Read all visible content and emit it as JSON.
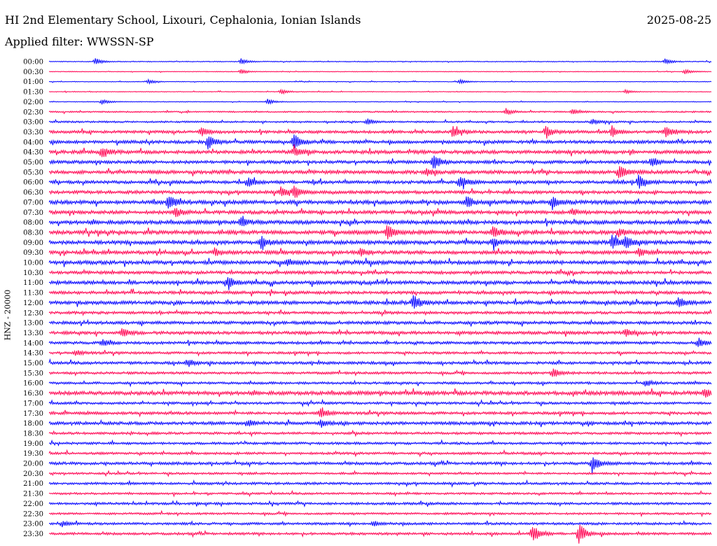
{
  "header": {
    "station": "HI 2nd Elementary School, Lixouri, Cephalonia, Ionian Islands",
    "date": "2025-08-25",
    "filter": "Applied filter: WWSSN-SP"
  },
  "chart_data": {
    "type": "line",
    "ylabel": "HNZ - 20000",
    "colors": [
      "#0000ff",
      "#ff0050"
    ],
    "rows": [
      {
        "label": "00:00",
        "noise": 0.5,
        "events": [
          {
            "x": 0.07,
            "amp": 5
          },
          {
            "x": 0.29,
            "amp": 4
          },
          {
            "x": 0.93,
            "amp": 4
          }
        ]
      },
      {
        "label": "00:30",
        "noise": 0.4,
        "events": [
          {
            "x": 0.29,
            "amp": 4
          },
          {
            "x": 0.96,
            "amp": 4
          }
        ]
      },
      {
        "label": "01:00",
        "noise": 0.4,
        "events": [
          {
            "x": 0.15,
            "amp": 3
          },
          {
            "x": 0.62,
            "amp": 3
          }
        ]
      },
      {
        "label": "01:30",
        "noise": 0.4,
        "events": [
          {
            "x": 0.35,
            "amp": 4
          },
          {
            "x": 0.87,
            "amp": 3
          }
        ]
      },
      {
        "label": "02:00",
        "noise": 0.4,
        "events": [
          {
            "x": 0.08,
            "amp": 4
          },
          {
            "x": 0.33,
            "amp": 4
          }
        ]
      },
      {
        "label": "02:30",
        "noise": 0.8,
        "events": [
          {
            "x": 0.69,
            "amp": 5
          },
          {
            "x": 0.79,
            "amp": 4
          }
        ]
      },
      {
        "label": "03:00",
        "noise": 1.0,
        "events": [
          {
            "x": 0.48,
            "amp": 5
          },
          {
            "x": 0.82,
            "amp": 4
          }
        ]
      },
      {
        "label": "03:30",
        "noise": 1.6,
        "events": [
          {
            "x": 0.23,
            "amp": 7
          },
          {
            "x": 0.61,
            "amp": 8
          },
          {
            "x": 0.75,
            "amp": 9
          },
          {
            "x": 0.85,
            "amp": 8
          },
          {
            "x": 0.93,
            "amp": 8
          }
        ]
      },
      {
        "label": "04:00",
        "noise": 1.8,
        "events": [
          {
            "x": 0.24,
            "amp": 10
          },
          {
            "x": 0.37,
            "amp": 12
          }
        ]
      },
      {
        "label": "04:30",
        "noise": 2.0,
        "events": [
          {
            "x": 0.08,
            "amp": 9
          },
          {
            "x": 0.37,
            "amp": 7
          }
        ]
      },
      {
        "label": "05:00",
        "noise": 1.8,
        "events": [
          {
            "x": 0.58,
            "amp": 12
          },
          {
            "x": 0.91,
            "amp": 7
          }
        ]
      },
      {
        "label": "05:30",
        "noise": 2.0,
        "events": [
          {
            "x": 0.57,
            "amp": 5
          },
          {
            "x": 0.86,
            "amp": 10
          }
        ]
      },
      {
        "label": "06:00",
        "noise": 1.8,
        "events": [
          {
            "x": 0.3,
            "amp": 7
          },
          {
            "x": 0.62,
            "amp": 10
          },
          {
            "x": 0.89,
            "amp": 10
          }
        ]
      },
      {
        "label": "06:30",
        "noise": 1.8,
        "events": [
          {
            "x": 0.35,
            "amp": 7
          },
          {
            "x": 0.37,
            "amp": 8
          }
        ]
      },
      {
        "label": "07:00",
        "noise": 2.2,
        "events": [
          {
            "x": 0.18,
            "amp": 11
          },
          {
            "x": 0.63,
            "amp": 9
          },
          {
            "x": 0.76,
            "amp": 9
          }
        ]
      },
      {
        "label": "07:30",
        "noise": 2.0,
        "events": [
          {
            "x": 0.19,
            "amp": 7
          },
          {
            "x": 0.79,
            "amp": 5
          }
        ]
      },
      {
        "label": "08:00",
        "noise": 2.2,
        "events": [
          {
            "x": 0.29,
            "amp": 7
          }
        ]
      },
      {
        "label": "08:30",
        "noise": 2.2,
        "events": [
          {
            "x": 0.51,
            "amp": 11
          },
          {
            "x": 0.67,
            "amp": 9
          },
          {
            "x": 0.86,
            "amp": 6
          }
        ]
      },
      {
        "label": "09:00",
        "noise": 2.2,
        "events": [
          {
            "x": 0.32,
            "amp": 8
          },
          {
            "x": 0.67,
            "amp": 6
          },
          {
            "x": 0.85,
            "amp": 11
          },
          {
            "x": 0.87,
            "amp": 8
          }
        ]
      },
      {
        "label": "09:30",
        "noise": 2.0,
        "events": [
          {
            "x": 0.25,
            "amp": 5
          },
          {
            "x": 0.47,
            "amp": 6
          },
          {
            "x": 0.89,
            "amp": 5
          }
        ]
      },
      {
        "label": "10:00",
        "noise": 2.2,
        "events": [
          {
            "x": 0.36,
            "amp": 4
          }
        ]
      },
      {
        "label": "10:30",
        "noise": 1.8,
        "events": []
      },
      {
        "label": "11:00",
        "noise": 2.0,
        "events": [
          {
            "x": 0.27,
            "amp": 8
          }
        ]
      },
      {
        "label": "11:30",
        "noise": 1.8,
        "events": []
      },
      {
        "label": "12:00",
        "noise": 2.0,
        "events": [
          {
            "x": 0.55,
            "amp": 11
          },
          {
            "x": 0.95,
            "amp": 8
          }
        ]
      },
      {
        "label": "12:30",
        "noise": 1.6,
        "events": []
      },
      {
        "label": "13:00",
        "noise": 1.8,
        "events": []
      },
      {
        "label": "13:30",
        "noise": 1.8,
        "events": [
          {
            "x": 0.11,
            "amp": 6
          },
          {
            "x": 0.87,
            "amp": 5
          }
        ]
      },
      {
        "label": "14:00",
        "noise": 1.6,
        "events": [
          {
            "x": 0.08,
            "amp": 4
          },
          {
            "x": 0.98,
            "amp": 7
          }
        ]
      },
      {
        "label": "14:30",
        "noise": 1.4,
        "events": [
          {
            "x": 0.04,
            "amp": 4
          }
        ]
      },
      {
        "label": "15:00",
        "noise": 1.6,
        "events": [
          {
            "x": 0.21,
            "amp": 5
          }
        ]
      },
      {
        "label": "15:30",
        "noise": 1.4,
        "events": [
          {
            "x": 0.76,
            "amp": 7
          }
        ]
      },
      {
        "label": "16:00",
        "noise": 1.4,
        "events": [
          {
            "x": 0.9,
            "amp": 5
          }
        ]
      },
      {
        "label": "16:30",
        "noise": 2.2,
        "events": [
          {
            "x": 0.99,
            "amp": 6
          }
        ]
      },
      {
        "label": "17:00",
        "noise": 1.4,
        "events": []
      },
      {
        "label": "17:30",
        "noise": 1.6,
        "events": [
          {
            "x": 0.41,
            "amp": 9
          }
        ]
      },
      {
        "label": "18:00",
        "noise": 1.8,
        "events": [
          {
            "x": 0.3,
            "amp": 5
          },
          {
            "x": 0.41,
            "amp": 6
          }
        ]
      },
      {
        "label": "18:30",
        "noise": 1.4,
        "events": []
      },
      {
        "label": "19:00",
        "noise": 1.4,
        "events": []
      },
      {
        "label": "19:30",
        "noise": 1.4,
        "events": []
      },
      {
        "label": "20:00",
        "noise": 1.6,
        "events": [
          {
            "x": 0.82,
            "amp": 12
          }
        ]
      },
      {
        "label": "20:30",
        "noise": 1.2,
        "events": []
      },
      {
        "label": "21:00",
        "noise": 1.4,
        "events": []
      },
      {
        "label": "21:30",
        "noise": 1.2,
        "events": []
      },
      {
        "label": "22:00",
        "noise": 1.4,
        "events": []
      },
      {
        "label": "22:30",
        "noise": 1.2,
        "events": []
      },
      {
        "label": "23:00",
        "noise": 1.4,
        "events": [
          {
            "x": 0.02,
            "amp": 4
          },
          {
            "x": 0.49,
            "amp": 4
          }
        ]
      },
      {
        "label": "23:30",
        "noise": 1.4,
        "events": [
          {
            "x": 0.73,
            "amp": 14
          },
          {
            "x": 0.8,
            "amp": 16
          }
        ]
      }
    ]
  }
}
